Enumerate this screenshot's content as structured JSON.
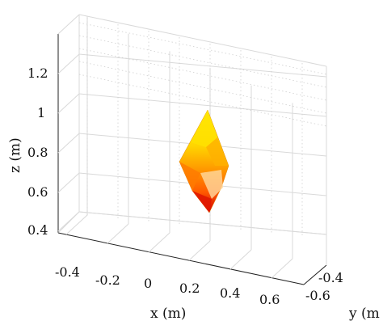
{
  "chart_data": {
    "type": "3d-surface",
    "title": "",
    "xlabel": "x (m)",
    "ylabel": "y (m",
    "zlabel": "z (m)",
    "x_ticks": [
      "-0.4",
      "-0.2",
      "0",
      "0.2",
      "0.4",
      "0.6"
    ],
    "y_ticks": [
      "-0.4",
      "-0.6"
    ],
    "z_ticks": [
      "1.2",
      "1",
      "0.8",
      "0.6",
      "0.4"
    ],
    "xlim": [
      -0.5,
      0.7
    ],
    "ylim": [
      -0.7,
      -0.35
    ],
    "zlim": [
      0.3,
      1.3
    ],
    "grid": true,
    "colormap": [
      "#ffff00",
      "#ffd000",
      "#ffa500",
      "#ff6600",
      "#ff2200",
      "#cc0000"
    ],
    "object": {
      "shape": "double-cone (diamond) surface",
      "apex_top_z": 1.0,
      "apex_bottom_z": 0.49,
      "widest_z": 0.75
    }
  }
}
